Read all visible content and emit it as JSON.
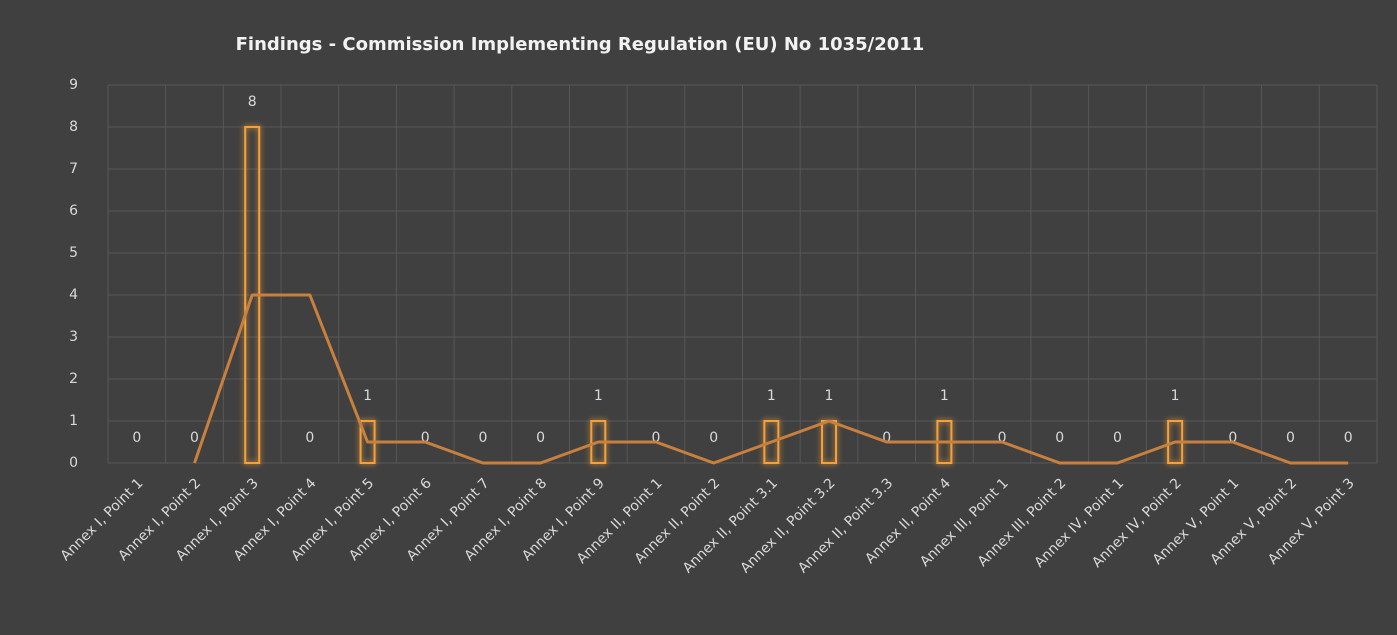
{
  "chart_data": {
    "type": "bar",
    "title": "Findings - Commission Implementing Regulation (EU) No 1035/2011",
    "categories": [
      "Annex I, Point 1",
      "Annex I, Point 2",
      "Annex I, Point 3",
      "Annex I, Point 4",
      "Annex I, Point 5",
      "Annex I, Point 6",
      "Annex I, Point 7",
      "Annex I, Point 8",
      "Annex I, Point 9",
      "Annex II, Point 1",
      "Annex II, Point 2",
      "Annex II, Point 3.1",
      "Annex II, Point 3.2",
      "Annex II, Point 3.3",
      "Annex II, Point 4",
      "Annex III, Point 1",
      "Annex III, Point 2",
      "Annex IV, Point 1",
      "Annex IV, Point 2",
      "Annex V, Point 1",
      "Annex V, Point 2",
      "Annex V, Point 3"
    ],
    "series": [
      {
        "type": "bar",
        "color": "#f5a13a",
        "data_labels": true,
        "values": [
          0,
          0,
          8,
          0,
          1,
          0,
          0,
          0,
          1,
          0,
          0,
          1,
          1,
          0,
          1,
          0,
          0,
          0,
          1,
          0,
          0,
          0
        ]
      },
      {
        "type": "line",
        "color": "#c9803f",
        "values": [
          null,
          0,
          4,
          4,
          0.5,
          0.5,
          0,
          0,
          0.5,
          0.5,
          0,
          0.5,
          1,
          0.5,
          0.5,
          0.5,
          0,
          0,
          0.5,
          0.5,
          0,
          0
        ]
      }
    ],
    "ylim": [
      0,
      9
    ],
    "yticks": [
      0,
      1,
      2,
      3,
      4,
      5,
      6,
      7,
      8,
      9
    ],
    "grid": true
  }
}
